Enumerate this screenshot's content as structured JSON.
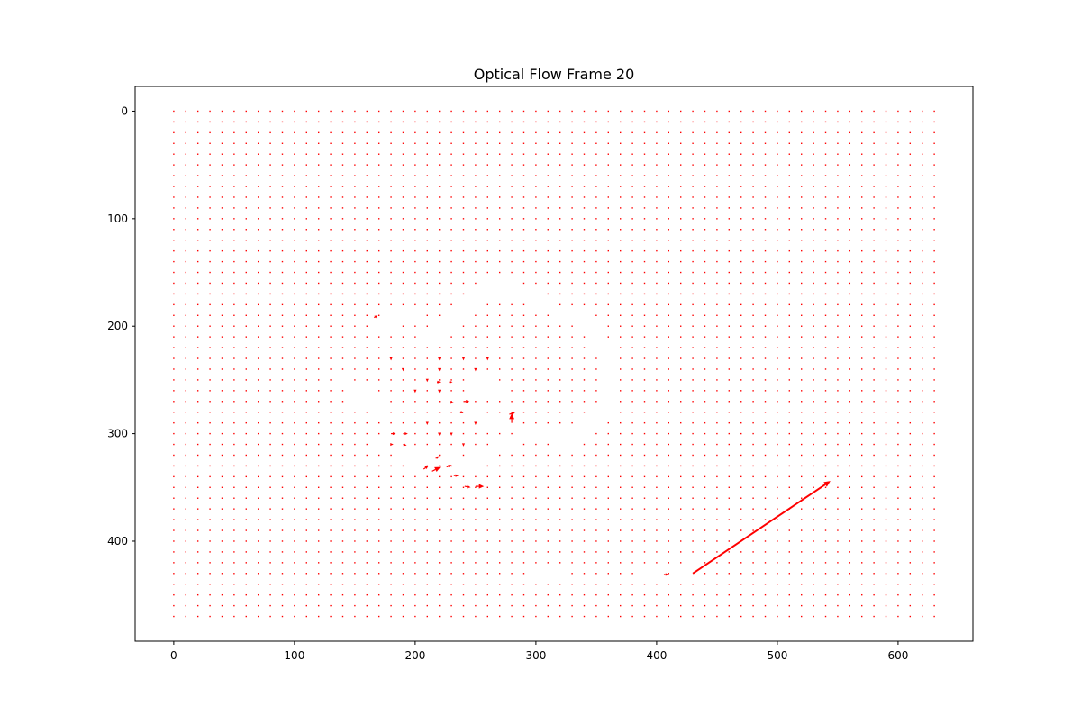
{
  "chart_data": {
    "type": "quiver",
    "title": "Optical Flow Frame 20",
    "xlabel": "",
    "ylabel": "",
    "xlim": [
      -32,
      662
    ],
    "ylim": [
      493,
      -23
    ],
    "y_inverted": true,
    "grid": false,
    "xticks": [
      0,
      100,
      200,
      300,
      400,
      500,
      600
    ],
    "yticks": [
      0,
      100,
      200,
      300,
      400
    ],
    "xtick_labels": [
      "0",
      "100",
      "200",
      "300",
      "400",
      "500",
      "600"
    ],
    "ytick_labels": [
      "0",
      "100",
      "200",
      "300",
      "400"
    ],
    "arrow_color": "#ff0000",
    "sample_grid": {
      "x_start": 0,
      "x_end": 630,
      "x_step": 10,
      "y_start": 0,
      "y_end": 470,
      "y_step": 10
    },
    "blank_points": [
      [
        140,
        250
      ],
      [
        150,
        260
      ],
      [
        150,
        270
      ],
      [
        160,
        260
      ],
      [
        160,
        270
      ],
      [
        170,
        270
      ],
      [
        170,
        280
      ],
      [
        260,
        160
      ],
      [
        260,
        170
      ],
      [
        270,
        160
      ],
      [
        270,
        170
      ],
      [
        280,
        160
      ],
      [
        280,
        170
      ],
      [
        290,
        170
      ],
      [
        300,
        170
      ],
      [
        300,
        180
      ],
      [
        310,
        180
      ],
      [
        320,
        190
      ],
      [
        330,
        190
      ],
      [
        340,
        190
      ],
      [
        340,
        200
      ],
      [
        350,
        200
      ],
      [
        350,
        210
      ],
      [
        350,
        220
      ],
      [
        360,
        220
      ],
      [
        360,
        230
      ],
      [
        360,
        240
      ],
      [
        360,
        250
      ],
      [
        360,
        260
      ],
      [
        360,
        270
      ],
      [
        360,
        280
      ],
      [
        350,
        280
      ],
      [
        350,
        290
      ],
      [
        340,
        290
      ],
      [
        340,
        300
      ],
      [
        330,
        300
      ],
      [
        320,
        300
      ],
      [
        310,
        300
      ],
      [
        300,
        300
      ],
      [
        290,
        300
      ],
      [
        320,
        310
      ],
      [
        330,
        310
      ],
      [
        250,
        170
      ],
      [
        250,
        180
      ],
      [
        240,
        180
      ],
      [
        240,
        190
      ],
      [
        230,
        190
      ],
      [
        230,
        200
      ],
      [
        220,
        200
      ],
      [
        220,
        210
      ],
      [
        210,
        210
      ],
      [
        200,
        190
      ],
      [
        190,
        190
      ],
      [
        180,
        190
      ],
      [
        180,
        200
      ],
      [
        170,
        200
      ],
      [
        250,
        250
      ],
      [
        250,
        260
      ],
      [
        260,
        250
      ],
      [
        260,
        260
      ],
      [
        270,
        260
      ],
      [
        240,
        280
      ],
      [
        250,
        280
      ],
      [
        260,
        290
      ],
      [
        270,
        290
      ],
      [
        280,
        310
      ],
      [
        270,
        310
      ],
      [
        260,
        320
      ],
      [
        250,
        320
      ],
      [
        250,
        330
      ],
      [
        230,
        320
      ],
      [
        240,
        330
      ],
      [
        210,
        320
      ],
      [
        200,
        320
      ],
      [
        200,
        330
      ],
      [
        190,
        320
      ],
      [
        170,
        310
      ],
      [
        300,
        430
      ],
      [
        310,
        430
      ],
      [
        320,
        430
      ],
      [
        390,
        430
      ],
      [
        400,
        430
      ],
      [
        420,
        430
      ],
      [
        430,
        420
      ]
    ],
    "vectors": [
      {
        "x": 166,
        "y": 192,
        "u": 3,
        "v": -2
      },
      {
        "x": 180,
        "y": 300,
        "u": 4,
        "v": 0
      },
      {
        "x": 190,
        "y": 300,
        "u": 4,
        "v": 0
      },
      {
        "x": 180,
        "y": 310,
        "u": 2,
        "v": 0
      },
      {
        "x": 190,
        "y": 310,
        "u": 3,
        "v": 1
      },
      {
        "x": 180,
        "y": 230,
        "u": 0,
        "v": 2
      },
      {
        "x": 190,
        "y": 240,
        "u": 0,
        "v": 2
      },
      {
        "x": 200,
        "y": 260,
        "u": 0,
        "v": 2
      },
      {
        "x": 210,
        "y": 250,
        "u": 0,
        "v": 2
      },
      {
        "x": 220,
        "y": 230,
        "u": 0,
        "v": 2
      },
      {
        "x": 220,
        "y": 240,
        "u": 0,
        "v": 2
      },
      {
        "x": 218,
        "y": 252,
        "u": 3,
        "v": 0
      },
      {
        "x": 228,
        "y": 252,
        "u": 3,
        "v": 0
      },
      {
        "x": 220,
        "y": 260,
        "u": 0,
        "v": 2
      },
      {
        "x": 229,
        "y": 271,
        "u": 3,
        "v": 0
      },
      {
        "x": 240,
        "y": 270,
        "u": 5,
        "v": 0
      },
      {
        "x": 238,
        "y": 280,
        "u": 2,
        "v": 1
      },
      {
        "x": 250,
        "y": 290,
        "u": 0,
        "v": 2
      },
      {
        "x": 250,
        "y": 240,
        "u": 0,
        "v": 2
      },
      {
        "x": 260,
        "y": 230,
        "u": 0,
        "v": 2
      },
      {
        "x": 240,
        "y": 230,
        "u": 0,
        "v": 2
      },
      {
        "x": 220,
        "y": 300,
        "u": 0,
        "v": 2
      },
      {
        "x": 230,
        "y": 300,
        "u": 0,
        "v": 2
      },
      {
        "x": 210,
        "y": 290,
        "u": 0,
        "v": 2
      },
      {
        "x": 240,
        "y": 310,
        "u": 0,
        "v": 2
      },
      {
        "x": 280,
        "y": 290,
        "u": 0,
        "v": -9
      },
      {
        "x": 278,
        "y": 282,
        "u": 5,
        "v": -2
      },
      {
        "x": 217,
        "y": 323,
        "u": 3,
        "v": -2
      },
      {
        "x": 226,
        "y": 331,
        "u": 4,
        "v": -2
      },
      {
        "x": 207,
        "y": 333,
        "u": 4,
        "v": -3
      },
      {
        "x": 214,
        "y": 335,
        "u": 7,
        "v": -4
      },
      {
        "x": 232,
        "y": 339,
        "u": 4,
        "v": 0
      },
      {
        "x": 241,
        "y": 349,
        "u": 5,
        "v": 1
      },
      {
        "x": 250,
        "y": 349,
        "u": 7,
        "v": 0
      },
      {
        "x": 406,
        "y": 431,
        "u": 4,
        "v": 0
      },
      {
        "x": 430,
        "y": 430,
        "u": 114,
        "v": -86
      }
    ]
  }
}
